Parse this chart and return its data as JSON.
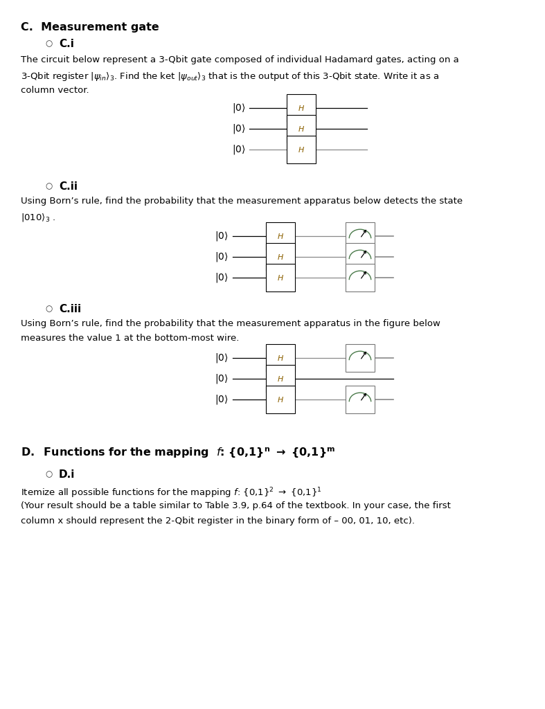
{
  "bg_color": "#ffffff",
  "title_c": "C.  Measurement gate",
  "sub_ci": "C.i",
  "text_ci_1": "The circuit below represent a 3-Qbit gate composed of individual Hadamard gates, acting on a",
  "text_ci_2": "3-Qbit register |ψ",
  "text_ci_2b": "in",
  "text_ci_2c": "⟩",
  "text_ci_2d": "3",
  "text_ci_2e": ". Find the ket |ψ",
  "text_ci_2f": "out",
  "text_ci_2g": "⟩",
  "text_ci_2h": "3",
  "text_ci_2i": " that is the output of this 3-Qbit state. Write it as a",
  "text_ci_3": "column vector.",
  "sub_cii": "C.ii",
  "text_cii_1": "Using Born’s rule, find the probability that the measurement apparatus below detects the state",
  "text_cii_2": "|010⟩",
  "text_cii_2b": "3",
  "text_cii_2c": " .",
  "sub_ciii": "C.iii",
  "text_ciii_1": "Using Born’s rule, find the probability that the measurement apparatus in the figure below",
  "text_ciii_2": "measures the value 1 at the bottom-most wire.",
  "title_d": "D.  Functions for the mapping  ",
  "title_d2": "f",
  "title_d3": ": {0,1}",
  "title_d4": "n",
  "title_d5": " → {0,1}",
  "title_d6": "m",
  "sub_di": "D.i",
  "text_di_1": "Itemize all possible functions for the mapping ",
  "text_di_1b": "f",
  "text_di_1c": ": {0,1}",
  "text_di_1d": "2",
  "text_di_1e": " → {0,1}",
  "text_di_1f": "1",
  "text_di_2": "(Your result should be a table similar to Table 3.9, p.64 of the textbook. In your case, the first",
  "text_di_3": "column x should represent the 2-Qbit register in the binary form of – 00, 01, 10, etc).",
  "wire_color_dark": "#000000",
  "wire_color_light": "#888888",
  "gate_edge": "#000000",
  "gate_face": "#ffffff",
  "H_color": "#8B6000",
  "meter_arc_color": "#4a7a4a",
  "meter_arrow_color": "#000000"
}
